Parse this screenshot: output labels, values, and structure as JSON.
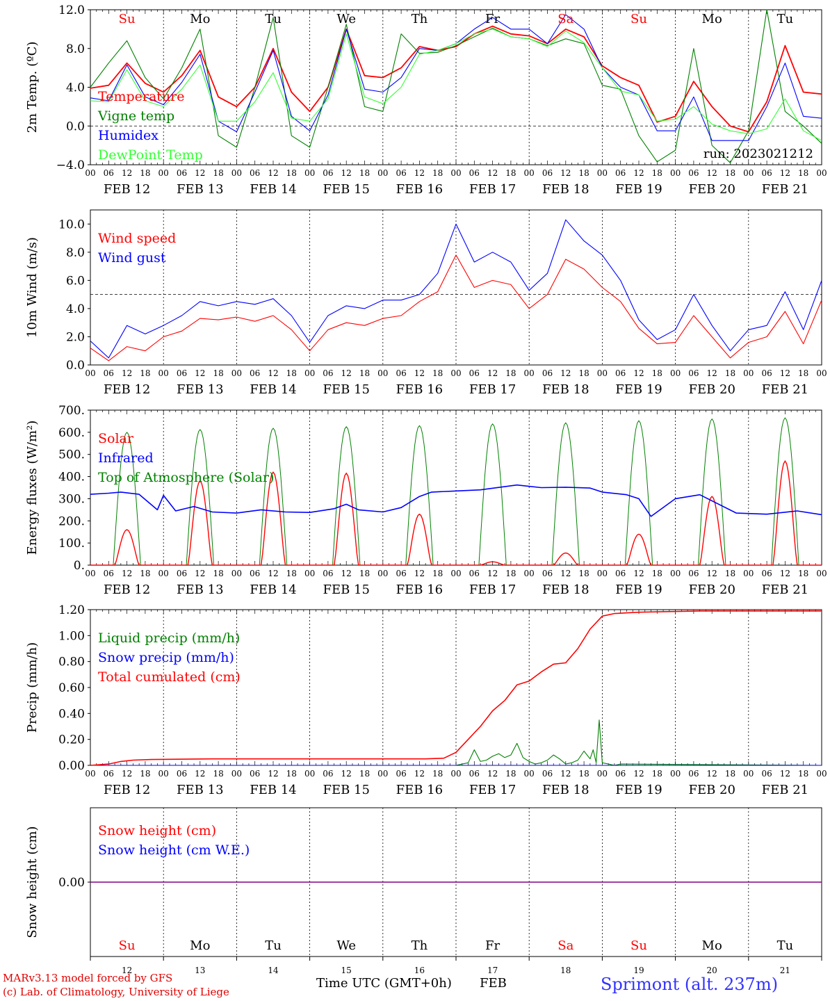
{
  "colors": {
    "red": "#ff0000",
    "green": "#008000",
    "blue": "#0000ff",
    "lightgreen": "#33ff33",
    "purple": "#800080",
    "black": "#000000"
  },
  "footer": {
    "credit1": "MARv3.13 model forced by GFS",
    "credit2": "(c) Lab. of Climatology, University of Liege",
    "xlabel": "Time UTC (GMT+0h)",
    "month": "FEB",
    "location": "Sprimont (alt. 237m)"
  },
  "chart_data": [
    {
      "type": "line",
      "id": "temp",
      "ylabel": "2m Temp. (ºC)",
      "ylim": [
        -4,
        12
      ],
      "yticks": [
        "12.0",
        "8.0",
        "4.0",
        "0.0",
        "−4.0"
      ],
      "ytick_values": [
        12,
        8,
        4,
        0,
        -4
      ],
      "dashed_ref": 0,
      "day_names": [
        "Su",
        "Mo",
        "Tu",
        "We",
        "Th",
        "Fr",
        "Sa",
        "Su",
        "Mo",
        "Tu"
      ],
      "day_name_colors": [
        "red",
        "black",
        "black",
        "black",
        "black",
        "black",
        "red",
        "red",
        "black",
        "black"
      ],
      "annotation": "run: 2023021212",
      "date_labels": [
        "FEB 12",
        "FEB 13",
        "FEB 14",
        "FEB 15",
        "FEB 16",
        "FEB 17",
        "FEB 18",
        "FEB 19",
        "FEB 20",
        "FEB 21"
      ],
      "hour_labels": [
        "00",
        "06",
        "12",
        "18"
      ],
      "x_hours": [
        0,
        6,
        12,
        18,
        24,
        30,
        36,
        42,
        48,
        54,
        60,
        66,
        72,
        78,
        84,
        90,
        96,
        102,
        108,
        114,
        120,
        126,
        132,
        138,
        144,
        150,
        156,
        162,
        168,
        174,
        180,
        186,
        192,
        198,
        204,
        210,
        216,
        222,
        228,
        234,
        240
      ],
      "series": [
        {
          "name": "Temperature",
          "color": "red",
          "values": [
            3.9,
            4.2,
            6.5,
            4.4,
            3.5,
            5.2,
            7.8,
            3.0,
            2.0,
            4.0,
            8.0,
            3.5,
            1.5,
            4.0,
            10.0,
            5.2,
            5.0,
            6.0,
            8.2,
            7.8,
            8.2,
            9.5,
            10.3,
            9.5,
            9.3,
            8.5,
            10.0,
            9.2,
            6.2,
            5.0,
            4.2,
            0.4,
            1.0,
            4.6,
            2.0,
            0.0,
            -0.6,
            2.5,
            8.3,
            3.5,
            3.3
          ]
        },
        {
          "name": "Vigne temp",
          "color": "green",
          "values": [
            4.0,
            6.5,
            8.8,
            5.0,
            2.8,
            6.0,
            10.0,
            -1.0,
            -2.2,
            4.0,
            11.2,
            -1.0,
            -2.2,
            4.0,
            10.5,
            2.0,
            1.5,
            9.5,
            7.5,
            7.6,
            8.3,
            9.2,
            10.1,
            9.2,
            9.0,
            8.3,
            9.0,
            8.5,
            4.2,
            3.8,
            -1.0,
            -3.7,
            -2.5,
            8.0,
            -2.0,
            -3.8,
            -0.5,
            12.0,
            1.5,
            0.0,
            -1.8
          ]
        },
        {
          "name": "Humidex",
          "color": "blue",
          "values": [
            2.9,
            2.6,
            6.3,
            3.0,
            2.2,
            4.5,
            7.4,
            0.5,
            -0.6,
            3.5,
            7.8,
            1.0,
            -0.5,
            3.2,
            10.0,
            3.8,
            3.5,
            5.0,
            8.0,
            7.8,
            8.5,
            10.0,
            11.2,
            10.0,
            10.0,
            8.5,
            11.5,
            10.0,
            6.0,
            4.0,
            3.2,
            -0.5,
            -0.5,
            3.0,
            -1.5,
            -1.5,
            -1.5,
            2.0,
            6.5,
            1.0,
            0.8
          ]
        },
        {
          "name": "DewPoint Temp",
          "color": "lightgreen",
          "values": [
            2.6,
            2.5,
            5.8,
            2.6,
            2.0,
            3.8,
            6.3,
            0.5,
            0.5,
            2.5,
            5.5,
            0.8,
            0.5,
            2.8,
            9.5,
            3.0,
            2.3,
            4.0,
            7.4,
            7.8,
            8.5,
            9.5,
            10.0,
            9.2,
            9.0,
            8.2,
            9.8,
            8.6,
            6.0,
            3.6,
            3.2,
            0.5,
            0.7,
            2.0,
            0.2,
            -0.5,
            -0.8,
            -0.3,
            2.8,
            -0.5,
            -1.5
          ]
        }
      ]
    },
    {
      "type": "line",
      "id": "wind",
      "ylabel": "10m Wind (m/s)",
      "ylim": [
        0,
        11
      ],
      "yticks": [
        "10.0",
        "8.0",
        "6.0",
        "4.0",
        "2.0",
        "0.0"
      ],
      "ytick_values": [
        10,
        8,
        6,
        4,
        2,
        0
      ],
      "dashed_ref": 5,
      "date_labels": [
        "FEB 12",
        "FEB 13",
        "FEB 14",
        "FEB 15",
        "FEB 16",
        "FEB 17",
        "FEB 18",
        "FEB 19",
        "FEB 20",
        "FEB 21"
      ],
      "hour_labels": [
        "00",
        "06",
        "12",
        "18"
      ],
      "x_hours": [
        0,
        6,
        12,
        18,
        24,
        30,
        36,
        42,
        48,
        54,
        60,
        66,
        72,
        78,
        84,
        90,
        96,
        102,
        108,
        114,
        120,
        126,
        132,
        138,
        144,
        150,
        156,
        162,
        168,
        174,
        180,
        186,
        192,
        198,
        204,
        210,
        216,
        222,
        228,
        234,
        240
      ],
      "series": [
        {
          "name": "Wind speed",
          "color": "red",
          "values": [
            1.2,
            0.3,
            1.3,
            1.0,
            2.0,
            2.4,
            3.3,
            3.2,
            3.4,
            3.1,
            3.5,
            2.5,
            1.0,
            2.5,
            3.0,
            2.8,
            3.3,
            3.5,
            4.5,
            5.2,
            7.8,
            5.5,
            6.0,
            5.7,
            4.0,
            5.0,
            7.5,
            6.8,
            5.5,
            4.5,
            2.6,
            1.5,
            1.6,
            3.5,
            2.0,
            0.5,
            1.6,
            2.0,
            3.8,
            1.5,
            4.6
          ]
        },
        {
          "name": "Wind gust",
          "color": "blue",
          "values": [
            1.7,
            0.5,
            2.8,
            2.2,
            2.8,
            3.5,
            4.5,
            4.2,
            4.5,
            4.3,
            4.7,
            3.5,
            1.6,
            3.5,
            4.2,
            4.0,
            4.6,
            4.6,
            5.0,
            6.5,
            10.0,
            7.3,
            8.0,
            7.3,
            5.3,
            6.5,
            10.3,
            8.8,
            7.8,
            6.0,
            3.2,
            1.8,
            2.5,
            5.0,
            2.8,
            1.0,
            2.5,
            2.8,
            5.2,
            2.5,
            6.0
          ]
        }
      ]
    },
    {
      "type": "line",
      "id": "energy",
      "ylabel": "Energy fluxes (W/m²)",
      "ylim": [
        0,
        700
      ],
      "yticks": [
        "700.",
        "600.",
        "500.",
        "400.",
        "300.",
        "200.",
        "100.",
        "0."
      ],
      "ytick_values": [
        700,
        600,
        500,
        400,
        300,
        200,
        100,
        0
      ],
      "date_labels": [
        "FEB 12",
        "FEB 13",
        "FEB 14",
        "FEB 15",
        "FEB 16",
        "FEB 17",
        "FEB 18",
        "FEB 19",
        "FEB 20",
        "FEB 21"
      ],
      "hour_labels": [
        "00",
        "06",
        "12",
        "18"
      ],
      "solar_peaks": [
        160,
        380,
        420,
        415,
        230,
        15,
        55,
        140,
        310,
        470
      ],
      "toa_peaks": [
        600,
        612,
        618,
        625,
        630,
        638,
        643,
        652,
        660,
        665
      ],
      "series": [
        {
          "name": "Solar",
          "color": "red"
        },
        {
          "name": "Infrared",
          "color": "blue",
          "x": [
            0,
            6,
            10,
            16,
            22,
            24,
            28,
            34,
            40,
            48,
            56,
            64,
            72,
            80,
            84,
            88,
            96,
            102,
            108,
            112,
            120,
            128,
            140,
            148,
            156,
            164,
            168,
            176,
            180,
            184,
            192,
            200,
            212,
            222,
            232,
            240
          ],
          "values": [
            320,
            325,
            330,
            320,
            250,
            315,
            245,
            265,
            240,
            235,
            250,
            240,
            238,
            255,
            275,
            250,
            240,
            260,
            310,
            330,
            335,
            340,
            362,
            350,
            352,
            348,
            330,
            318,
            300,
            220,
            300,
            318,
            235,
            230,
            245,
            228
          ]
        },
        {
          "name": "Top of Atmosphere (Solar)",
          "color": "green"
        }
      ]
    },
    {
      "type": "line",
      "id": "precip",
      "ylabel": "Precip (mm/h)",
      "ylim": [
        0,
        1.2
      ],
      "yticks": [
        "1.20",
        "1.00",
        "0.80",
        "0.60",
        "0.40",
        "0.20",
        "0.00"
      ],
      "ytick_values": [
        1.2,
        1.0,
        0.8,
        0.6,
        0.4,
        0.2,
        0.0
      ],
      "date_labels": [
        "FEB 12",
        "FEB 13",
        "FEB 14",
        "FEB 15",
        "FEB 16",
        "FEB 17",
        "FEB 18",
        "FEB 19",
        "FEB 20",
        "FEB 21"
      ],
      "hour_labels": [
        "00",
        "06",
        "12",
        "18"
      ],
      "series": [
        {
          "name": "Liquid precip (mm/h)",
          "color": "green",
          "x": [
            0,
            120,
            122,
            124,
            126,
            128,
            130,
            132,
            134,
            136,
            138,
            140,
            142,
            144,
            146,
            148,
            150,
            152,
            154,
            156,
            158,
            160,
            162,
            164,
            165,
            166,
            167,
            168,
            170,
            172,
            174,
            240
          ],
          "values": [
            0,
            0,
            0.01,
            0.02,
            0.12,
            0.03,
            0.04,
            0.07,
            0.09,
            0.06,
            0.08,
            0.17,
            0.06,
            0.03,
            0.01,
            0.02,
            0.04,
            0.08,
            0.05,
            0.01,
            0.02,
            0.04,
            0.11,
            0.05,
            0.12,
            0.02,
            0.35,
            0.02,
            0.01,
            0,
            0.01,
            0
          ]
        },
        {
          "name": "Snow precip (mm/h)",
          "color": "blue",
          "x": [
            0,
            240
          ],
          "values": [
            0,
            0
          ]
        },
        {
          "name": "Total cumulated (cm)",
          "color": "red",
          "x": [
            0,
            6,
            10,
            14,
            20,
            40,
            80,
            110,
            116,
            120,
            124,
            128,
            132,
            136,
            140,
            144,
            148,
            152,
            156,
            160,
            164,
            168,
            172,
            180,
            200,
            220,
            240
          ],
          "values": [
            0,
            0.01,
            0.03,
            0.04,
            0.045,
            0.05,
            0.05,
            0.05,
            0.055,
            0.1,
            0.2,
            0.3,
            0.42,
            0.5,
            0.62,
            0.65,
            0.72,
            0.78,
            0.79,
            0.9,
            1.05,
            1.15,
            1.17,
            1.18,
            1.19,
            1.19,
            1.19
          ]
        }
      ]
    },
    {
      "type": "line",
      "id": "snow",
      "ylabel": "Snow height (cm)",
      "ylim": [
        -1,
        1
      ],
      "yticks": [
        "0.00"
      ],
      "ytick_values": [
        0
      ],
      "day_names": [
        "Su",
        "Mo",
        "Tu",
        "We",
        "Th",
        "Fr",
        "Sa",
        "Su",
        "Mo",
        "Tu"
      ],
      "day_name_colors": [
        "red",
        "black",
        "black",
        "black",
        "black",
        "black",
        "red",
        "red",
        "black",
        "black"
      ],
      "day_numbers": [
        "12",
        "13",
        "14",
        "15",
        "16",
        "17",
        "18",
        "19",
        "20",
        "21"
      ],
      "series": [
        {
          "name": "Snow height (cm)",
          "color": "red",
          "x": [
            0,
            240
          ],
          "values": [
            0,
            0
          ]
        },
        {
          "name": "Snow height (cm W.E.)",
          "color": "blue",
          "x": [
            0,
            240
          ],
          "values": [
            0,
            0
          ]
        }
      ]
    }
  ]
}
